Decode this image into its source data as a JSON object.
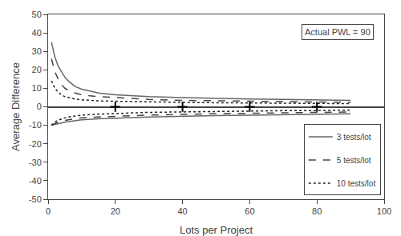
{
  "chart_data": {
    "type": "line",
    "annotation": "Actual PWL = 90",
    "xlabel": "Lots per Project",
    "ylabel": "Average Difference",
    "xlim": [
      0,
      100
    ],
    "ylim": [
      -50,
      50
    ],
    "xticks": [
      0,
      20,
      40,
      60,
      80,
      100
    ],
    "yticks": [
      -50,
      -40,
      -30,
      -20,
      -10,
      0,
      10,
      20,
      30,
      40,
      50
    ],
    "grid": false,
    "legend": "lower right",
    "x": [
      1,
      2,
      3,
      4,
      5,
      6,
      8,
      10,
      15,
      20,
      25,
      30,
      40,
      50,
      60,
      70,
      80,
      90
    ],
    "series": [
      {
        "name": "3 tests/lot",
        "color": "#666666",
        "line_style": "solid",
        "upper": [
          35,
          27,
          22,
          19,
          16,
          14,
          11,
          9.5,
          7.5,
          6.5,
          6.0,
          5.5,
          5.0,
          4.5,
          4.2,
          4.0,
          3.8,
          3.5
        ],
        "lower": [
          -10,
          -9.5,
          -9.0,
          -8.7,
          -8.3,
          -8.0,
          -7.5,
          -7.0,
          -6.5,
          -6.0,
          -5.8,
          -5.5,
          -5.0,
          -4.8,
          -4.5,
          -4.3,
          -4.0,
          -3.8
        ]
      },
      {
        "name": "5 tests/lot",
        "color": "#444444",
        "line_style": "dashed",
        "upper": [
          26,
          19,
          15,
          12,
          10,
          9.0,
          7.5,
          6.5,
          5.5,
          5.0,
          4.5,
          4.0,
          3.5,
          3.2,
          3.0,
          2.8,
          2.6,
          2.4
        ],
        "lower": [
          -10,
          -9.0,
          -8.3,
          -7.8,
          -7.3,
          -7.0,
          -6.5,
          -6.0,
          -5.5,
          -5.0,
          -4.8,
          -4.5,
          -4.0,
          -3.7,
          -3.5,
          -3.3,
          -3.0,
          -2.8
        ]
      },
      {
        "name": "10 tests/lot",
        "color": "#222222",
        "line_style": "dotted",
        "upper": [
          14,
          10,
          8.0,
          6.5,
          5.5,
          5.0,
          4.2,
          3.8,
          3.2,
          3.0,
          2.8,
          2.6,
          2.4,
          2.2,
          2.0,
          1.9,
          1.8,
          1.7
        ],
        "lower": [
          -10,
          -8.3,
          -7.2,
          -6.5,
          -6.0,
          -5.5,
          -5.0,
          -4.5,
          -4.0,
          -3.5,
          -3.3,
          -3.0,
          -2.7,
          -2.5,
          -2.3,
          -2.1,
          -2.0,
          -1.8
        ]
      }
    ],
    "crosses": {
      "x": [
        20,
        40,
        60,
        80
      ],
      "y": [
        0,
        0,
        0,
        0
      ],
      "marker": "cross",
      "color": "#000000"
    }
  }
}
